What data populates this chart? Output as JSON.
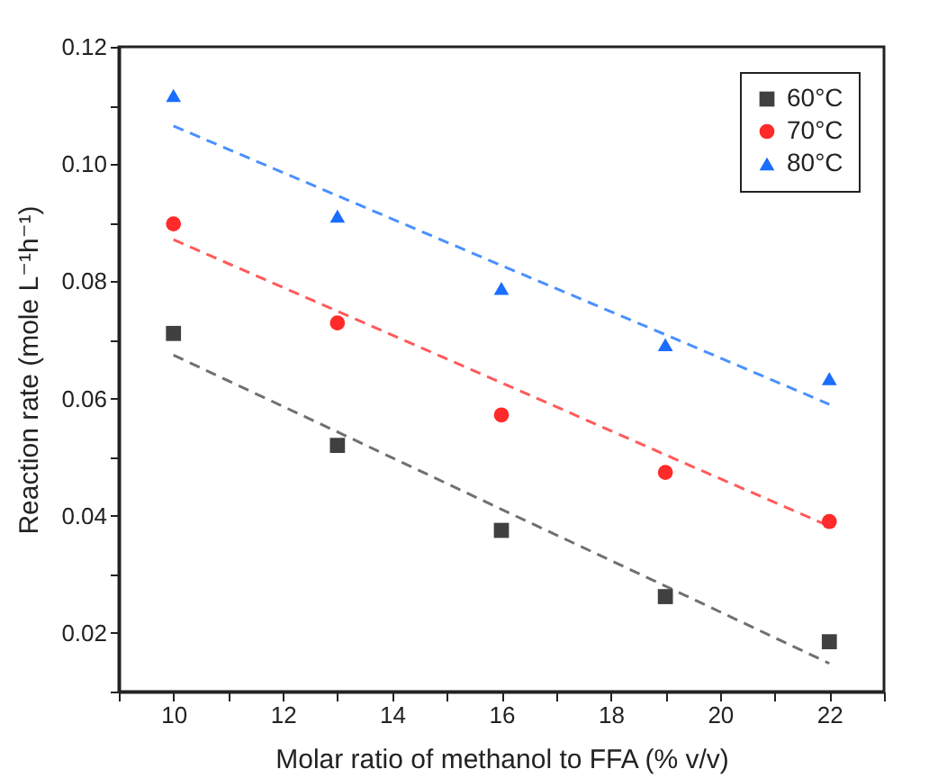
{
  "chart_data": {
    "type": "scatter",
    "xlabel": "Molar ratio of methanol to FFA (% v/v)",
    "ylabel": "Reaction rate (mole L⁻¹h⁻¹)",
    "x": [
      10,
      13,
      16,
      19,
      22
    ],
    "series": [
      {
        "name": "60°C",
        "color": "#404040",
        "marker": "square",
        "values": [
          0.0711,
          0.052,
          0.0375,
          0.0262,
          0.0185
        ]
      },
      {
        "name": "70°C",
        "color": "#ff2a2a",
        "marker": "circle",
        "values": [
          0.0898,
          0.0729,
          0.0572,
          0.0474,
          0.039
        ]
      },
      {
        "name": "80°C",
        "color": "#1a6dff",
        "marker": "triangle",
        "values": [
          0.1117,
          0.0911,
          0.0788,
          0.0692,
          0.0634
        ]
      },
      {
        "type": "line",
        "color": "#707070",
        "line_style": "dashed",
        "marker": "none",
        "values": [
          0.0674,
          0.0543,
          0.0411,
          0.028,
          0.0148
        ]
      },
      {
        "type": "line",
        "color": "#ff5a5a",
        "line_style": "dashed",
        "marker": "none",
        "values": [
          0.0871,
          0.0749,
          0.0627,
          0.0504,
          0.0382
        ]
      },
      {
        "type": "line",
        "color": "#4a90ff",
        "line_style": "dashed",
        "marker": "none",
        "values": [
          0.1065,
          0.0946,
          0.0827,
          0.0709,
          0.059
        ]
      }
    ],
    "xlim": [
      9,
      23
    ],
    "xticks": [
      {
        "value": 9,
        "label": null
      },
      10,
      {
        "value": 11,
        "label": null
      },
      12,
      {
        "value": 13,
        "label": null
      },
      14,
      {
        "value": 15,
        "label": null
      },
      16,
      {
        "value": 17,
        "label": null
      },
      18,
      {
        "value": 19,
        "label": null
      },
      20,
      {
        "value": 21,
        "label": null
      },
      22,
      {
        "value": 23,
        "label": null
      }
    ],
    "ylim": [
      0.01,
      0.12
    ],
    "yticks": [
      {
        "value": 0.01,
        "label": null
      },
      0.02,
      {
        "value": 0.03,
        "label": null
      },
      0.04,
      {
        "value": 0.05,
        "label": null
      },
      0.06,
      {
        "value": 0.07,
        "label": null
      },
      0.08,
      {
        "value": 0.09,
        "label": null
      },
      {
        "value": 0.1,
        "label": "0.10"
      },
      {
        "value": 0.11,
        "label": null
      },
      0.12
    ],
    "legend": "top right",
    "grid": false
  }
}
